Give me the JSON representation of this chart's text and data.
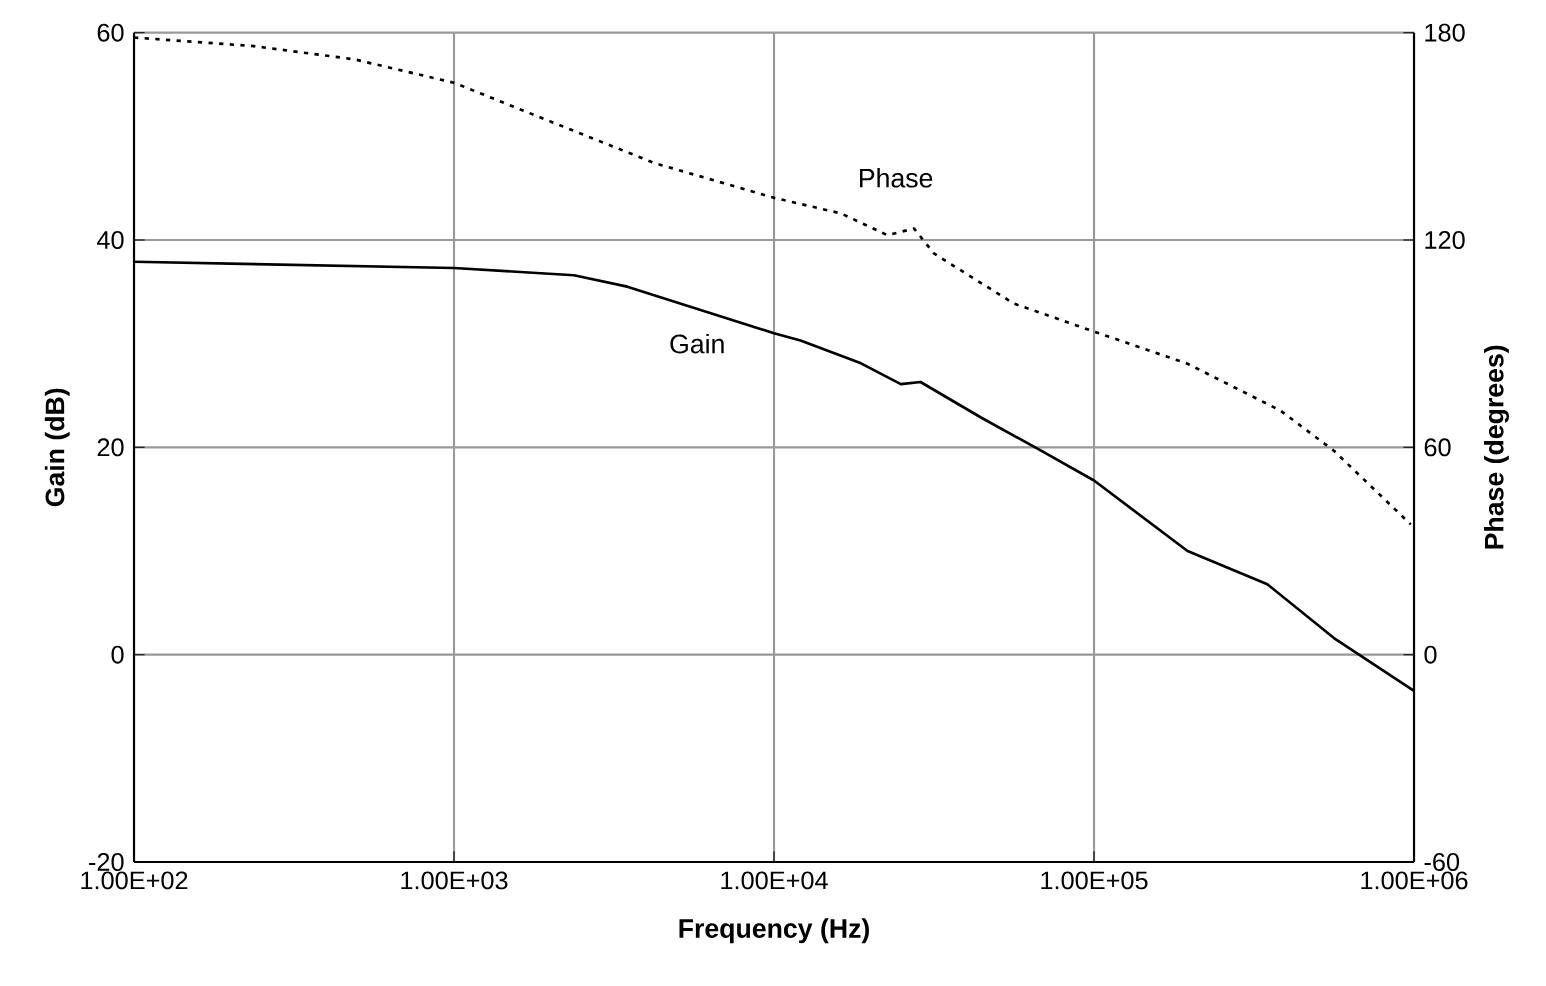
{
  "chart_data": {
    "type": "line",
    "xlabel": "Frequency (Hz)",
    "ylabel": "Gain (dB)",
    "y2label": "Phase (degrees)",
    "log": "x",
    "grid": true,
    "xlim": [
      100,
      1000000
    ],
    "xticks": [
      {
        "value": 100,
        "label": "1.00E+02"
      },
      {
        "value": 1000,
        "label": "1.00E+03"
      },
      {
        "value": 10000,
        "label": "1.00E+04"
      },
      {
        "value": 100000,
        "label": "1.00E+05"
      },
      {
        "value": 1000000,
        "label": "1.00E+06"
      }
    ],
    "ylim": [
      -20,
      60
    ],
    "yticks": [
      -20,
      0,
      20,
      40,
      60
    ],
    "y2lim": [
      -60,
      180
    ],
    "y2ticks": [
      -60,
      0,
      60,
      120,
      180
    ],
    "series": [
      {
        "color": "#000000",
        "line_style": "solid",
        "x": [
          100,
          1000,
          2370,
          3480,
          10000,
          12100,
          18700,
          24900,
          28700,
          44200,
          68100,
          100000,
          196000,
          348000,
          562000,
          1000000
        ],
        "values": [
          37.9,
          37.3,
          36.6,
          35.5,
          31.0,
          30.3,
          28.1,
          26.1,
          26.3,
          22.9,
          19.7,
          16.8,
          10.0,
          6.8,
          1.6,
          -3.5
        ]
      },
      {
        "color": "#000000",
        "line_style": "dotted",
        "axis": "y2",
        "x": [
          100,
          237,
          487,
          1000,
          2050,
          4220,
          10000,
          16200,
          22600,
          27400,
          31600,
          56200,
          100000,
          196000,
          383000,
          562000,
          977000
        ],
        "values": [
          178.6,
          176.1,
          172.3,
          165.5,
          153.9,
          142.3,
          132.2,
          127.7,
          121.4,
          123.3,
          116.1,
          101.6,
          93.5,
          84.2,
          70.6,
          59.0,
          37.7
        ]
      }
    ],
    "annotations": [
      "Phase",
      "Gain"
    ]
  }
}
